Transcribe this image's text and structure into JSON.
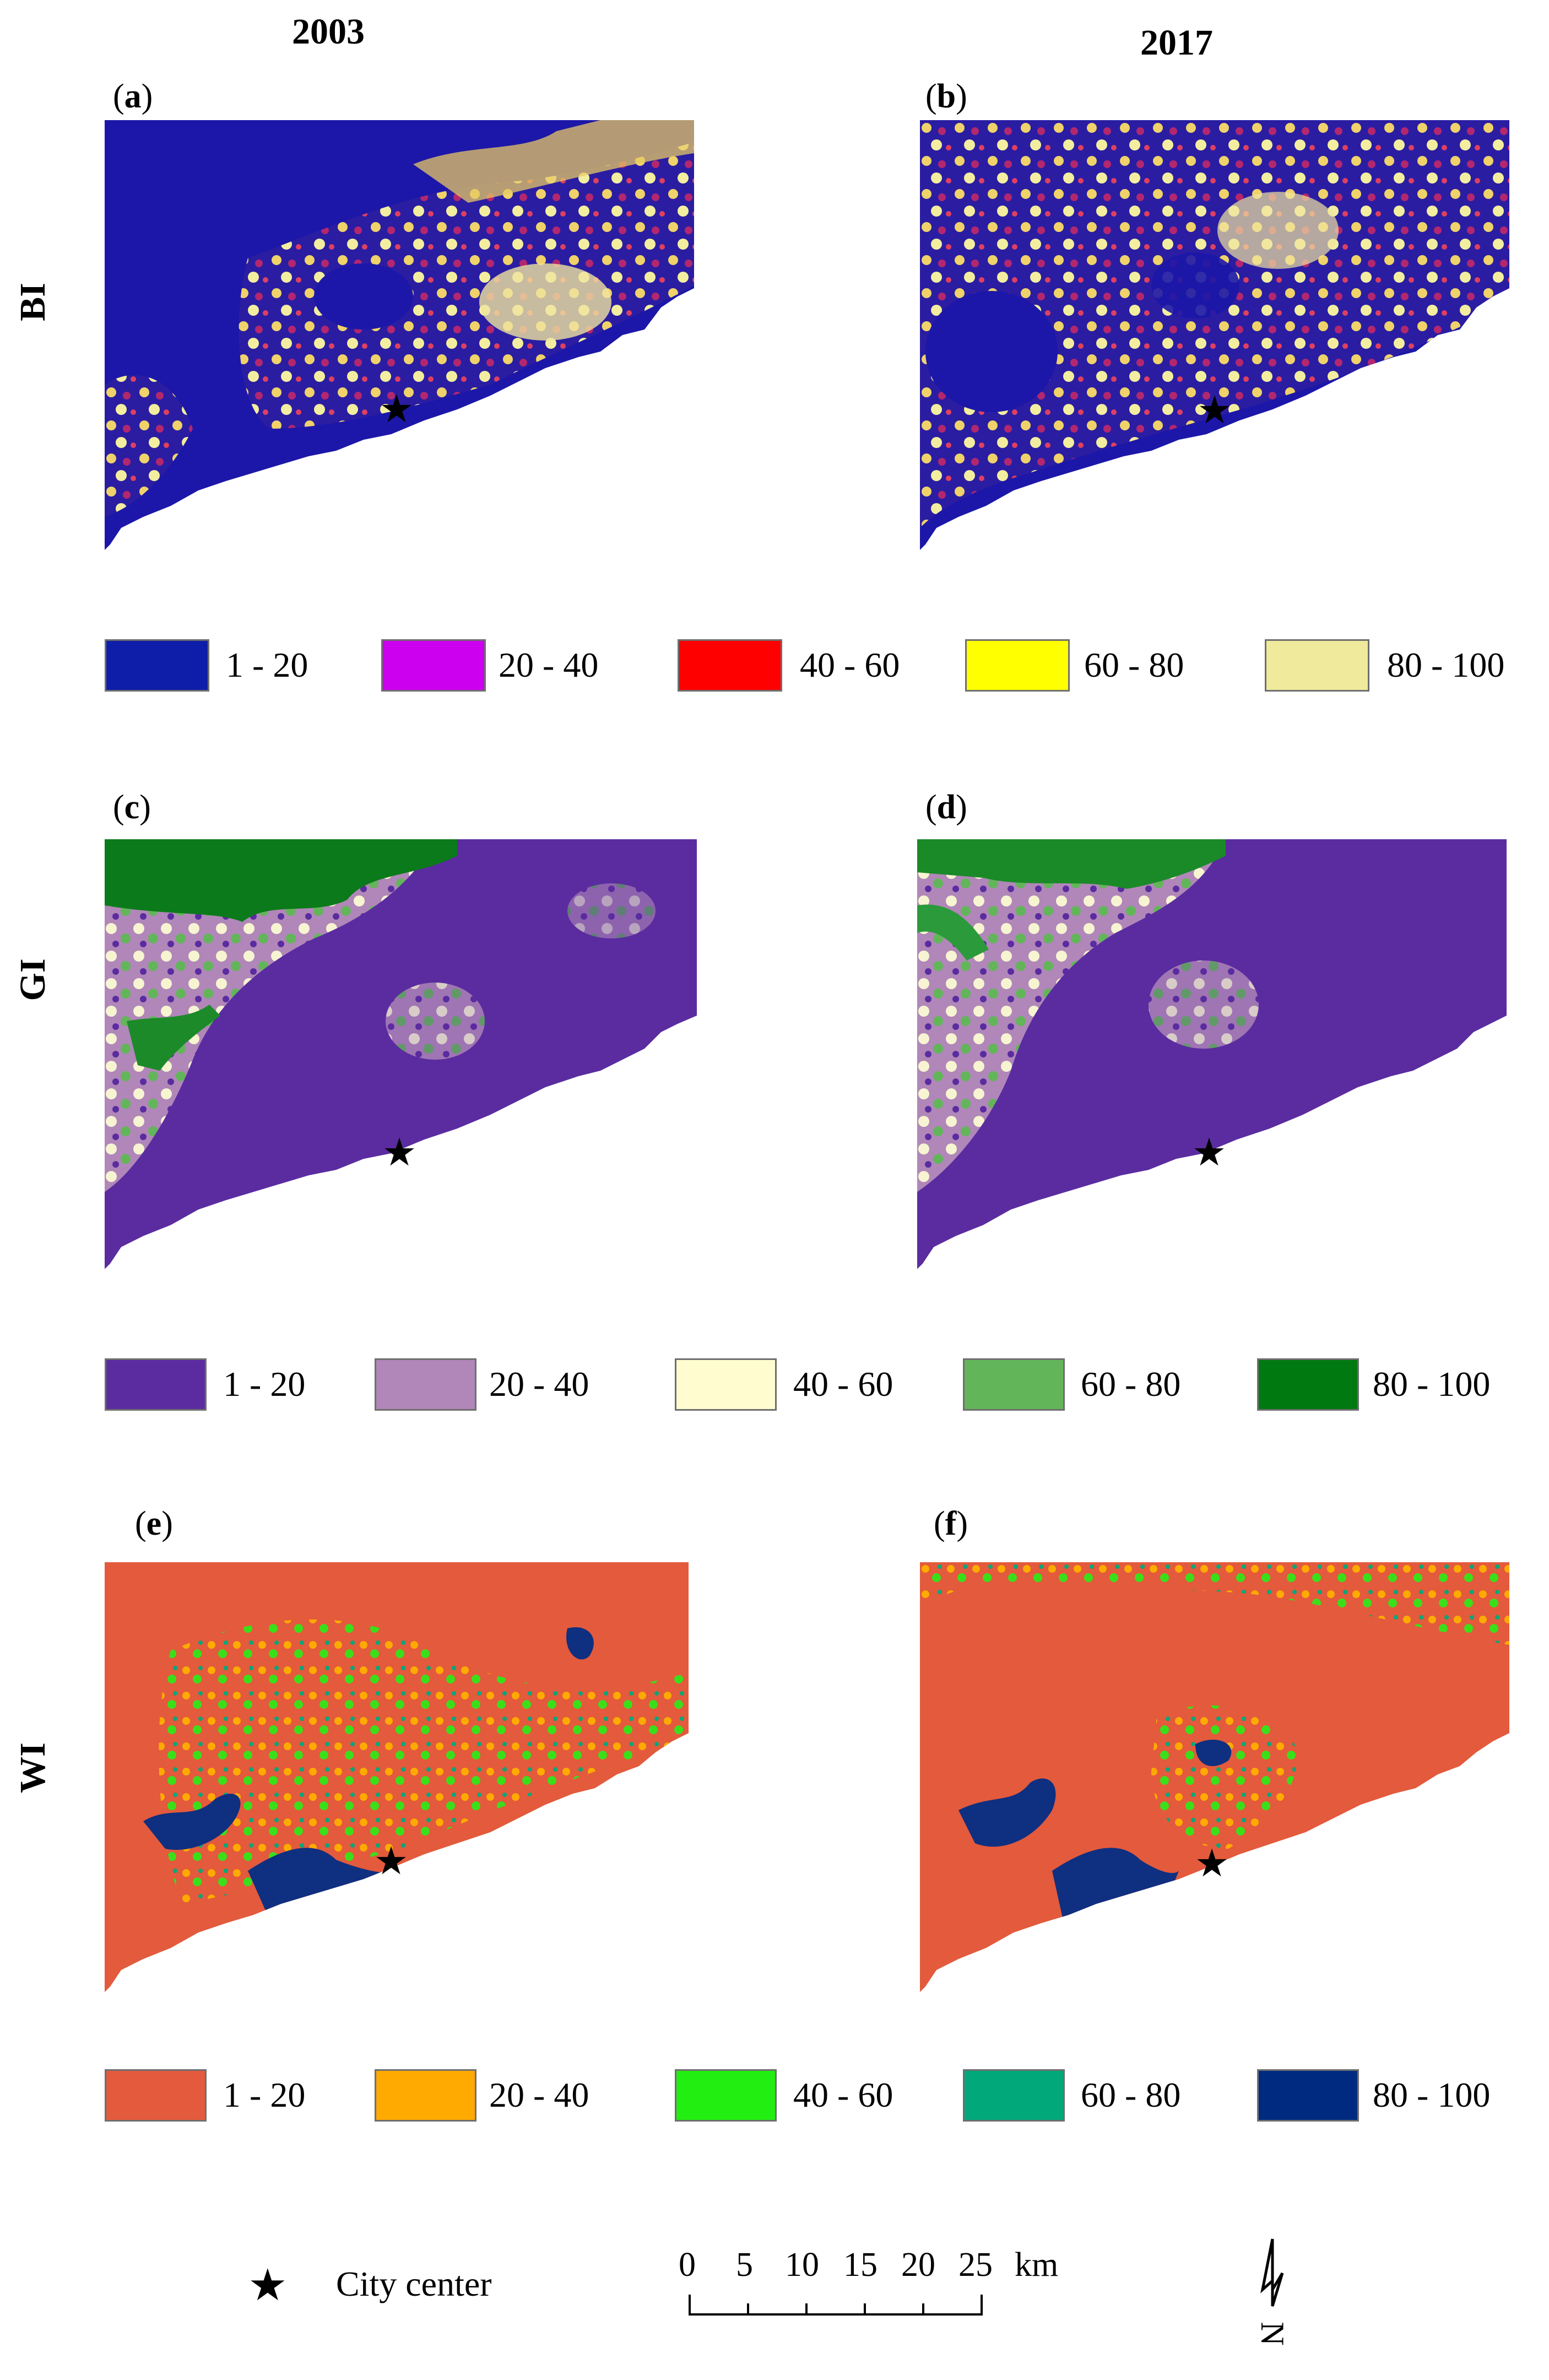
{
  "columns": [
    "2003",
    "2017"
  ],
  "rows": [
    {
      "index": "BI",
      "panels": [
        {
          "label_letter": "a",
          "year": "2003",
          "palette_dominant": [
            "#1c17a8",
            "#ecd66a",
            "#b0266e",
            "#f2efa5"
          ]
        },
        {
          "label_letter": "b",
          "year": "2017",
          "palette_dominant": [
            "#1c17a8",
            "#ecd66a",
            "#b0266e",
            "#f2efa5"
          ]
        }
      ],
      "legend": [
        {
          "range": "1 - 20",
          "color": "#0f1ea8"
        },
        {
          "range": "20 - 40",
          "color": "#cc00ee"
        },
        {
          "range": "40 - 60",
          "color": "#ff0000"
        },
        {
          "range": "60 - 80",
          "color": "#ffff00"
        },
        {
          "range": "80 - 100",
          "color": "#f0ea9c"
        }
      ]
    },
    {
      "index": "GI",
      "panels": [
        {
          "label_letter": "c",
          "year": "2003"
        },
        {
          "label_letter": "d",
          "year": "2017"
        }
      ],
      "legend": [
        {
          "range": "1 - 20",
          "color": "#5a2ca0"
        },
        {
          "range": "20 - 40",
          "color": "#b087b8"
        },
        {
          "range": "40 - 60",
          "color": "#fffdd0"
        },
        {
          "range": "60 - 80",
          "color": "#63b55a"
        },
        {
          "range": "80 - 100",
          "color": "#007a10"
        }
      ]
    },
    {
      "index": "WI",
      "panels": [
        {
          "label_letter": "e",
          "year": "2003"
        },
        {
          "label_letter": "f",
          "year": "2017"
        }
      ],
      "legend": [
        {
          "range": "1 - 20",
          "color": "#e35a3c"
        },
        {
          "range": "20 - 40",
          "color": "#ffaa00"
        },
        {
          "range": "40 - 60",
          "color": "#22ee11"
        },
        {
          "range": "60 - 80",
          "color": "#00a87a"
        },
        {
          "range": "80 - 100",
          "color": "#002a80"
        }
      ]
    }
  ],
  "key": {
    "city_center_label": "City center"
  },
  "scale_bar": {
    "ticks": [
      "0",
      "5",
      "10",
      "15",
      "20",
      "25"
    ],
    "unit": "km"
  },
  "north_arrow": {
    "letter": "N"
  }
}
